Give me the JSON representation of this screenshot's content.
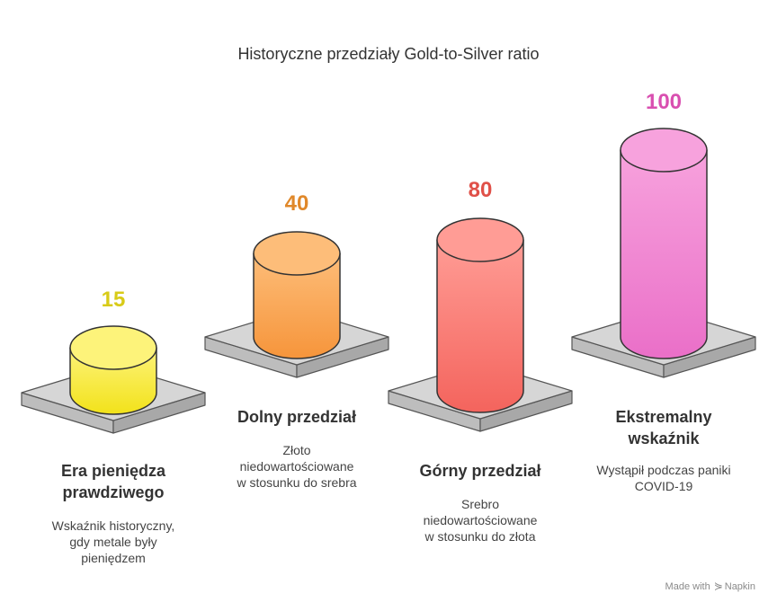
{
  "title": "Historyczne przedziały Gold-to-Silver ratio",
  "items": [
    {
      "value": "15",
      "label_lines": [
        "Era pieniędza",
        "prawdziwego"
      ],
      "desc_lines": [
        "Wskaźnik historyczny,",
        "gdy metale były",
        "pieniędzem"
      ],
      "color_top": "#fdf37a",
      "color_bottom": "#f2e21a",
      "value_color": "#d8cb18"
    },
    {
      "value": "40",
      "label_lines": [
        "Dolny przedział"
      ],
      "desc_lines": [
        "Złoto",
        "niedowartościowane",
        "w stosunku do srebra"
      ],
      "color_top": "#fdbd79",
      "color_bottom": "#f6953b",
      "value_color": "#e0882a"
    },
    {
      "value": "80",
      "label_lines": [
        "Górny przedział"
      ],
      "desc_lines": [
        "Srebro",
        "niedowartościowane",
        "w stosunku do złota"
      ],
      "color_top": "#ff9c95",
      "color_bottom": "#f4645d",
      "value_color": "#e05048"
    },
    {
      "value": "100",
      "label_lines": [
        "Ekstremalny",
        "wskaźnik"
      ],
      "desc_lines": [
        "Wystąpił podczas paniki",
        "COVID-19"
      ],
      "color_top": "#f7a2dd",
      "color_bottom": "#ea6fc8",
      "value_color": "#d94fb0"
    }
  ],
  "credit": {
    "prefix": "Made with",
    "brand": "Napkin"
  }
}
